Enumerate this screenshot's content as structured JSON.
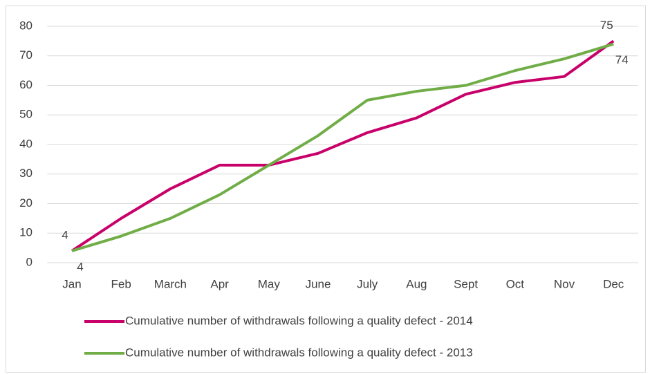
{
  "chart_data": {
    "type": "line",
    "categories": [
      "Jan",
      "Feb",
      "March",
      "Apr",
      "May",
      "June",
      "July",
      "Aug",
      "Sept",
      "Oct",
      "Nov",
      "Dec"
    ],
    "series": [
      {
        "name": "Cumulative number of withdrawals following a quality defect - 2014",
        "color": "#c8006a",
        "values": [
          4,
          15,
          25,
          33,
          33,
          37,
          44,
          49,
          57,
          61,
          63,
          75
        ],
        "value_labels": [
          "4",
          null,
          null,
          null,
          null,
          null,
          null,
          null,
          null,
          null,
          null,
          "75"
        ]
      },
      {
        "name": "Cumulative number of withdrawals following a quality defect - 2013",
        "color": "#70ad47",
        "values": [
          4,
          9,
          15,
          23,
          33,
          43,
          55,
          58,
          60,
          65,
          69,
          74
        ],
        "value_labels": [
          "4",
          null,
          null,
          null,
          null,
          null,
          null,
          null,
          null,
          null,
          null,
          "74"
        ]
      }
    ],
    "ylim": [
      0,
      80
    ],
    "yticks": [
      0,
      10,
      20,
      30,
      40,
      50,
      60,
      70,
      80
    ],
    "grid": true
  }
}
